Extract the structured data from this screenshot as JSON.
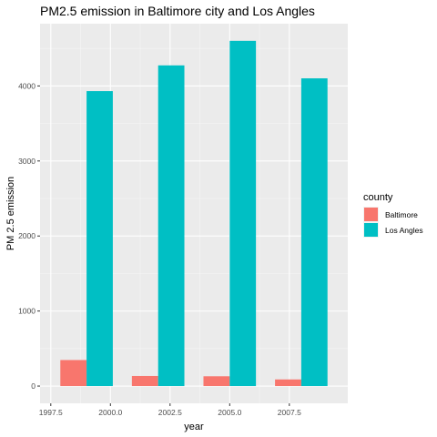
{
  "chart_data": {
    "type": "bar",
    "title": "PM2.5 emission in Baltimore city and Los Angles",
    "xlabel": "year",
    "ylabel": "PM 2.5 emission",
    "x_ticks": [
      "1997.5",
      "2000.0",
      "2002.5",
      "2005.0",
      "2007.5"
    ],
    "x_tick_values": [
      1997.5,
      2000.0,
      2002.5,
      2005.0,
      2007.5
    ],
    "y_ticks": [
      "0",
      "1000",
      "2000",
      "3000",
      "4000"
    ],
    "y_tick_values": [
      0,
      1000,
      2000,
      3000,
      4000
    ],
    "xlim": [
      1997.05,
      2009.95
    ],
    "ylim": [
      -230,
      4830
    ],
    "categories": [
      1999,
      2002,
      2005,
      2008
    ],
    "bar_width": 2.2,
    "position": "dodge",
    "series": [
      {
        "name": "Baltimore",
        "color": "#F8766D",
        "values": [
          346.8,
          134.3,
          130.4,
          88.3
        ]
      },
      {
        "name": "Los Angles",
        "color": "#00BFC4",
        "values": [
          3931.1,
          4274.0,
          4601.4,
          4101.3
        ]
      }
    ],
    "legend": {
      "title": "county",
      "position": "right"
    },
    "grid": true,
    "panel_background": "#EBEBEB"
  }
}
